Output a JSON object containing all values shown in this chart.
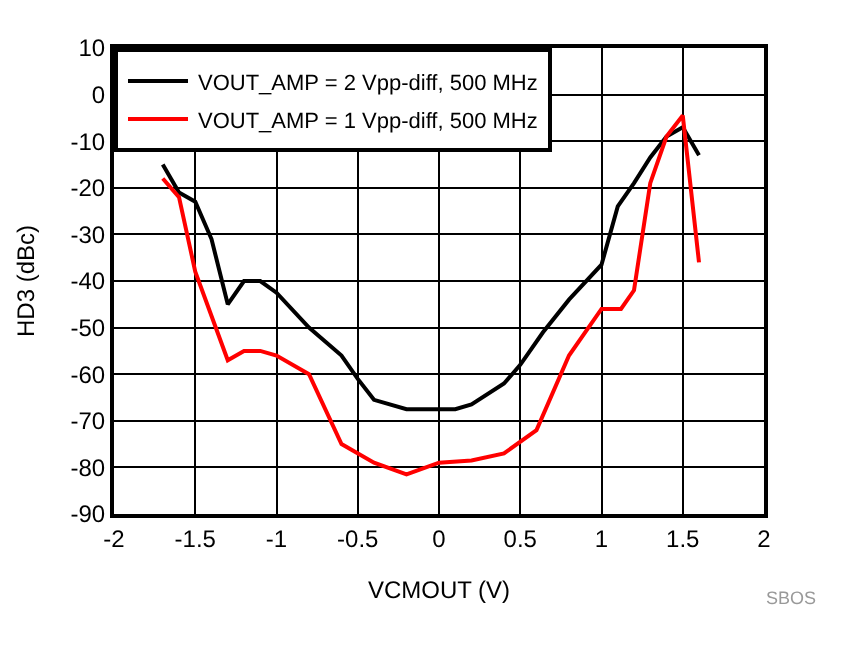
{
  "chart_data": {
    "type": "line",
    "xlabel": "VCMOUT (V)",
    "ylabel": "HD3 (dBc)",
    "xlim": [
      -2,
      2
    ],
    "xticks": [
      -2,
      -1.5,
      -1,
      -0.5,
      0,
      0.5,
      1,
      1.5,
      2
    ],
    "ylim": [
      -90,
      10
    ],
    "yticks": [
      -90,
      -80,
      -70,
      -60,
      -50,
      -40,
      -30,
      -20,
      -10,
      0,
      10
    ],
    "grid": true,
    "legend": "top left",
    "marker": "none",
    "line_style": "solid",
    "annotations": [
      "SBOS"
    ],
    "series": [
      {
        "name": "VOUT_AMP = 2 Vpp-diff, 500 MHz",
        "color": "#000000",
        "x": [
          -1.7,
          -1.6,
          -1.5,
          -1.4,
          -1.3,
          -1.2,
          -1.1,
          -1.0,
          -0.8,
          -0.6,
          -0.5,
          -0.4,
          -0.2,
          0.1,
          0.2,
          0.4,
          0.5,
          0.64,
          0.8,
          1.0,
          1.1,
          1.2,
          1.3,
          1.4,
          1.5,
          1.6
        ],
        "values": [
          -15,
          -21,
          -23,
          -31,
          -45,
          -40,
          -40,
          -42.5,
          -50,
          -56,
          -61,
          -65.5,
          -67.5,
          -67.5,
          -66.5,
          -62,
          -58,
          -51,
          -44,
          -36.5,
          -24,
          -19,
          -13.5,
          -9,
          -7,
          -13
        ]
      },
      {
        "name": "VOUT_AMP = 1 Vpp-diff, 500 MHz",
        "color": "#ff0000",
        "x": [
          -1.7,
          -1.6,
          -1.5,
          -1.3,
          -1.2,
          -1.1,
          -1.0,
          -0.8,
          -0.6,
          -0.4,
          -0.2,
          0,
          0.2,
          0.4,
          0.6,
          0.8,
          1.0,
          1.12,
          1.2,
          1.3,
          1.4,
          1.5,
          1.6
        ],
        "values": [
          -18,
          -22,
          -38,
          -57,
          -55,
          -55,
          -56,
          -60,
          -75,
          -79,
          -81.5,
          -79,
          -78.5,
          -77,
          -72,
          -56,
          -46,
          -46,
          -42,
          -19,
          -9,
          -4.5,
          -36
        ]
      }
    ]
  }
}
